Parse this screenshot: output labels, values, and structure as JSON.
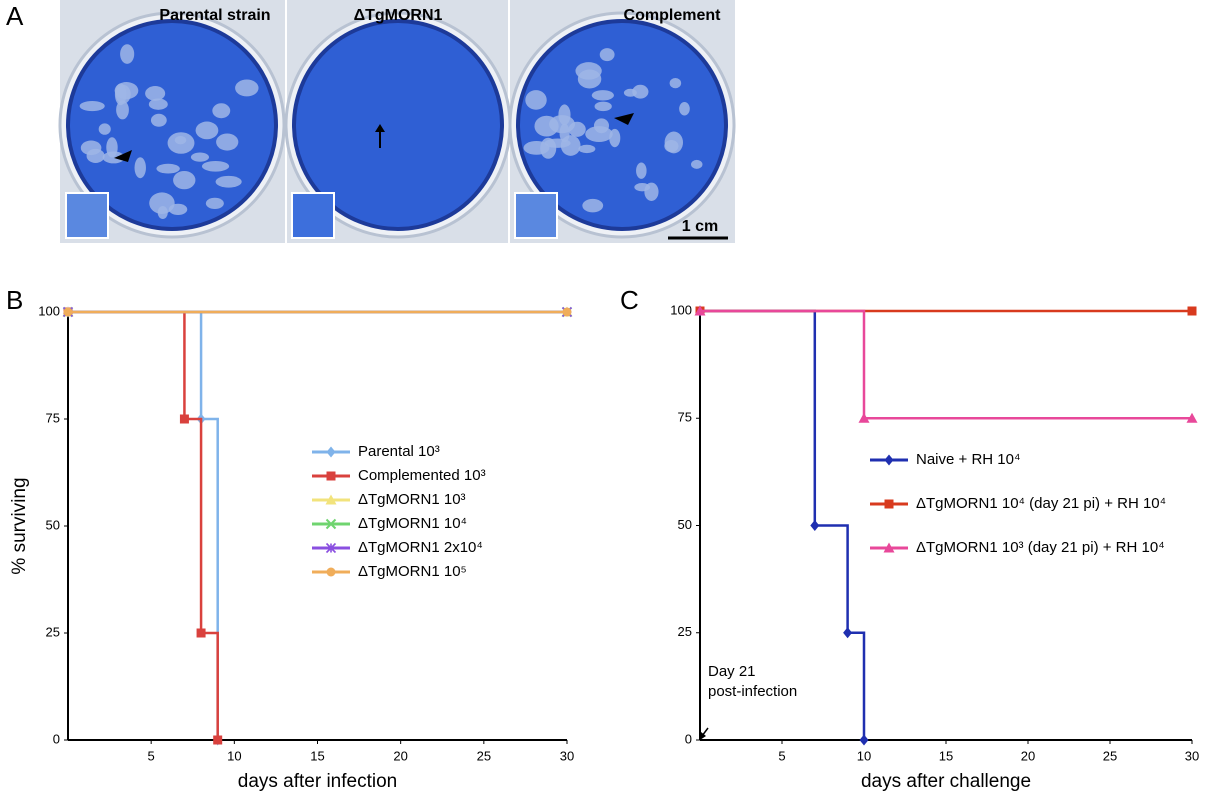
{
  "figure": {
    "panel_labels": [
      "A",
      "B",
      "C"
    ],
    "plates": [
      "Parental strain",
      "ΔTgMORN1",
      "Complement"
    ],
    "scale_bar": "1 cm"
  },
  "chart_data": [
    {
      "type": "line",
      "step": true,
      "y_label": "% surviving",
      "x_label": "days after infection",
      "xlim": [
        0,
        30
      ],
      "xticks": [
        5,
        10,
        15,
        20,
        25,
        30
      ],
      "ylim": [
        0,
        100
      ],
      "yticks": [
        0,
        25,
        50,
        75,
        100
      ],
      "legend": "center",
      "series": [
        {
          "name": "Parental 10³",
          "color": "#7fb3ea",
          "marker": "diamond",
          "x": [
            0,
            8,
            9
          ],
          "values": [
            100,
            75,
            0
          ]
        },
        {
          "name": "Complemented 10³",
          "color": "#d9413d",
          "marker": "square",
          "x": [
            0,
            7,
            8,
            9
          ],
          "values": [
            100,
            75,
            25,
            0
          ]
        },
        {
          "name": "ΔTgMORN1 10³",
          "color": "#f2e37c",
          "marker": "triangle",
          "x": [
            0,
            30
          ],
          "values": [
            100,
            100
          ]
        },
        {
          "name": "ΔTgMORN1 10⁴",
          "color": "#6fd46f",
          "marker": "cross",
          "x": [
            0,
            30
          ],
          "values": [
            100,
            100
          ]
        },
        {
          "name": "ΔTgMORN1 2x10⁴",
          "color": "#8a4fe0",
          "marker": "star",
          "x": [
            0,
            30
          ],
          "values": [
            100,
            100
          ]
        },
        {
          "name": "ΔTgMORN1 10⁵",
          "color": "#f0ad5a",
          "marker": "circle",
          "x": [
            0,
            30
          ],
          "values": [
            100,
            100
          ]
        }
      ]
    },
    {
      "type": "line",
      "step": true,
      "x_label": "days after challenge",
      "xlim": [
        0,
        30
      ],
      "xticks": [
        5,
        10,
        15,
        20,
        25,
        30
      ],
      "ylim": [
        0,
        100
      ],
      "yticks": [
        0,
        25,
        50,
        75,
        100
      ],
      "legend": "center",
      "annotation": [
        "Day 21",
        "post-infection"
      ],
      "series": [
        {
          "name": "Naive + RH 10⁴",
          "color": "#1f2fb0",
          "marker": "diamond",
          "x": [
            0,
            7,
            9,
            10
          ],
          "values": [
            100,
            50,
            25,
            0
          ]
        },
        {
          "name": "ΔTgMORN1 10⁴ (day 21 pi) + RH 10⁴",
          "color": "#d83a1e",
          "marker": "square",
          "x": [
            0,
            30
          ],
          "values": [
            100,
            100
          ]
        },
        {
          "name": "ΔTgMORN1 10³ (day 21 pi) + RH 10⁴",
          "color": "#e8489a",
          "marker": "triangle",
          "x": [
            0,
            10,
            30
          ],
          "values": [
            100,
            75,
            75
          ]
        }
      ]
    }
  ]
}
